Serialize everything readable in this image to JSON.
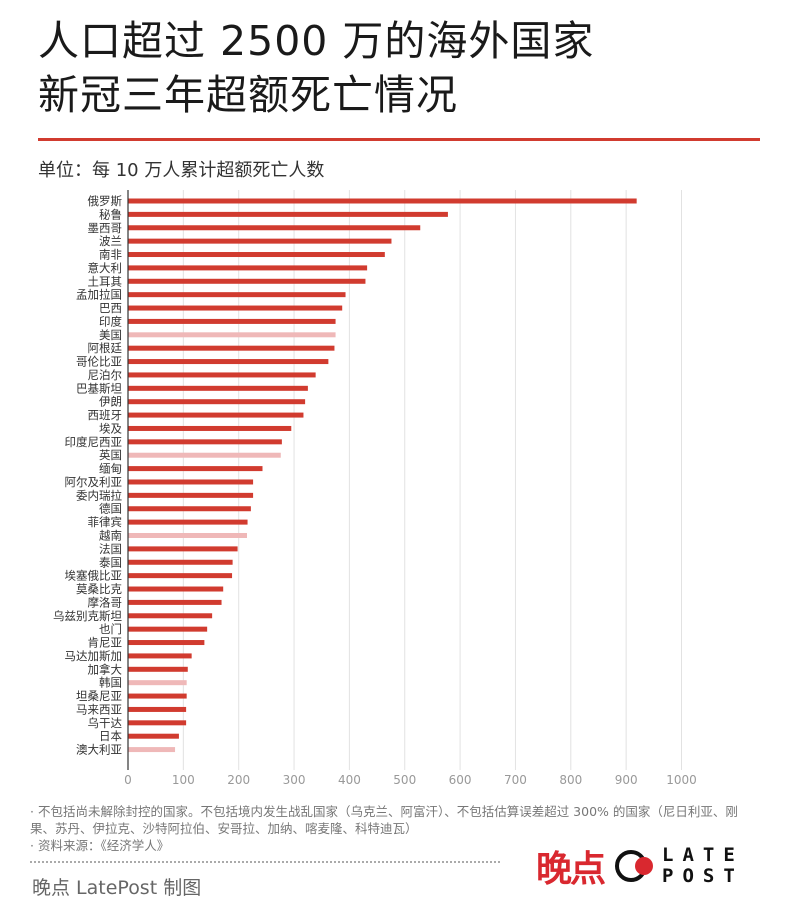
{
  "header": {
    "title_line1": "人口超过 2500 万的海外国家",
    "title_line2": "新冠三年超额死亡情况",
    "unit": "单位：每 10 万人累计超额死亡人数"
  },
  "chart_data": {
    "type": "bar",
    "orientation": "horizontal",
    "categories": [
      "俄罗斯",
      "秘鲁",
      "墨西哥",
      "波兰",
      "南非",
      "意大利",
      "土耳其",
      "孟加拉国",
      "巴西",
      "印度",
      "美国",
      "阿根廷",
      "哥伦比亚",
      "尼泊尔",
      "巴基斯坦",
      "伊朗",
      "西班牙",
      "埃及",
      "印度尼西亚",
      "英国",
      "缅甸",
      "阿尔及利亚",
      "委内瑞拉",
      "德国",
      "菲律宾",
      "越南",
      "法国",
      "泰国",
      "埃塞俄比亚",
      "莫桑比克",
      "摩洛哥",
      "乌兹别克斯坦",
      "也门",
      "肯尼亚",
      "马达加斯加",
      "加拿大",
      "韩国",
      "坦桑尼亚",
      "马来西亚",
      "乌干达",
      "日本",
      "澳大利亚"
    ],
    "values": [
      919,
      578,
      528,
      476,
      464,
      432,
      429,
      393,
      387,
      375,
      375,
      373,
      362,
      339,
      325,
      320,
      317,
      295,
      278,
      276,
      243,
      226,
      226,
      222,
      216,
      215,
      198,
      189,
      188,
      172,
      169,
      152,
      143,
      138,
      115,
      108,
      106,
      106,
      105,
      105,
      92,
      85
    ],
    "highlight_light": [
      "美国",
      "英国",
      "越南",
      "韩国",
      "澳大利亚"
    ],
    "colors": {
      "main": "#d13b2f",
      "light": "#efb8b8",
      "grid": "#e2e2e2",
      "axis": "#333333"
    },
    "xlim": [
      0,
      1000
    ],
    "xticks": [
      0,
      100,
      200,
      300,
      400,
      500,
      600,
      700,
      800,
      900,
      1000
    ],
    "grid": true
  },
  "footer": {
    "note1": "· 不包括尚未解除封控的国家。不包括境内发生战乱国家（乌克兰、阿富汗）、不包括估算误差超过 300% 的国家（尼日利亚、刚果、苏丹、伊拉克、沙特阿拉伯、安哥拉、加纳、喀麦隆、科特迪瓦）",
    "note2": "· 资料来源：《经济学人》",
    "credit": "晚点 LatePost 制图",
    "logo_cn": "晚点",
    "logo_en_line1": "LATE",
    "logo_en_line2": "POST"
  }
}
